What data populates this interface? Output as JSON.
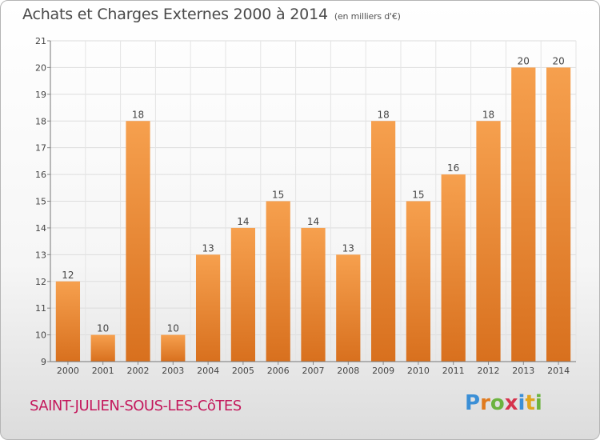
{
  "chart_data": {
    "type": "bar",
    "title": "Achats et Charges Externes 2000 à 2014",
    "subtitle": "(en milliers d'€)",
    "categories": [
      "2000",
      "2001",
      "2002",
      "2003",
      "2004",
      "2005",
      "2006",
      "2007",
      "2008",
      "2009",
      "2010",
      "2011",
      "2012",
      "2013",
      "2014"
    ],
    "values": [
      12,
      10,
      18,
      10,
      13,
      14,
      15,
      14,
      13,
      18,
      15,
      16,
      18,
      20,
      20
    ],
    "ylim": [
      9,
      21
    ],
    "yticks": [
      9,
      10,
      11,
      12,
      13,
      14,
      15,
      16,
      17,
      18,
      19,
      20,
      21
    ],
    "grid": true,
    "xlabel": "",
    "ylabel": "",
    "bar_color_top": "#f6a04e",
    "bar_color_bottom": "#d8701e"
  },
  "commune": "SAINT-JULIEN-SOUS-LES-CôTES",
  "logo": {
    "text": "Proxiti",
    "letters": [
      {
        "ch": "P",
        "color": "#3b8fd6"
      },
      {
        "ch": "r",
        "color": "#e07a1e"
      },
      {
        "ch": "o",
        "color": "#6cb33f"
      },
      {
        "ch": "x",
        "color": "#d6334d"
      },
      {
        "ch": "i",
        "color": "#3b8fd6"
      },
      {
        "ch": "t",
        "color": "#e0a51e"
      },
      {
        "ch": "i",
        "color": "#6cb33f"
      }
    ]
  }
}
